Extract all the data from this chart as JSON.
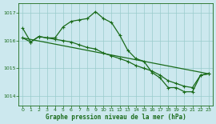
{
  "title": "Graphe pression niveau de la mer (hPa)",
  "bg_color": "#cce8ee",
  "grid_color": "#99cccc",
  "line_color": "#1a6b1a",
  "ylim": [
    1013.65,
    1017.35
  ],
  "yticks": [
    1014,
    1015,
    1016,
    1017
  ],
  "xlim": [
    -0.5,
    23.5
  ],
  "xticks": [
    0,
    1,
    2,
    3,
    4,
    5,
    6,
    7,
    8,
    9,
    10,
    11,
    12,
    13,
    14,
    15,
    16,
    17,
    18,
    19,
    20,
    21,
    22,
    23
  ],
  "curve_main": {
    "x": [
      0,
      1,
      2,
      3,
      4,
      5,
      6,
      7,
      8,
      9,
      10,
      11,
      12,
      13,
      14,
      15,
      16,
      17,
      18,
      19,
      20,
      21,
      22,
      23
    ],
    "y": [
      1016.45,
      1015.95,
      1016.15,
      1016.1,
      1016.1,
      1016.5,
      1016.7,
      1016.75,
      1016.8,
      1017.05,
      1016.8,
      1016.65,
      1016.2,
      1015.65,
      1015.35,
      1015.25,
      1014.85,
      1014.65,
      1014.3,
      1014.3,
      1014.15,
      1014.15,
      1014.75,
      1014.8
    ]
  },
  "curve_mid": {
    "x": [
      0,
      1,
      2,
      3,
      4,
      5,
      6,
      7,
      8,
      9,
      10,
      11,
      12,
      13,
      14,
      15,
      16,
      17,
      18,
      19,
      20,
      21,
      22,
      23
    ],
    "y": [
      1016.1,
      1015.95,
      1016.15,
      1016.1,
      1016.05,
      1016.0,
      1015.95,
      1015.85,
      1015.75,
      1015.7,
      1015.55,
      1015.45,
      1015.35,
      1015.25,
      1015.1,
      1015.0,
      1014.9,
      1014.75,
      1014.55,
      1014.45,
      1014.35,
      1014.3,
      1014.75,
      1014.8
    ]
  },
  "curve_linear": {
    "x": [
      0,
      23
    ],
    "y": [
      1016.1,
      1014.8
    ]
  }
}
